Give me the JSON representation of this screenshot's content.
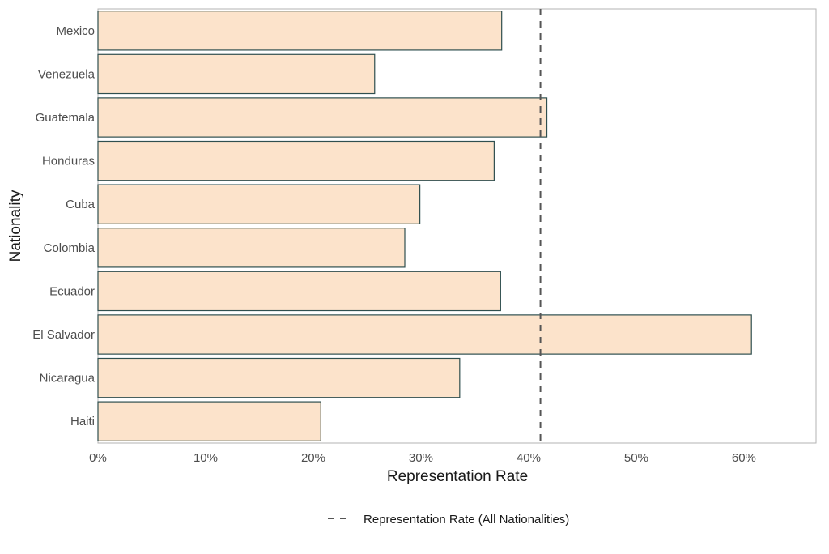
{
  "chart_data": {
    "type": "bar",
    "orientation": "horizontal",
    "categories": [
      "Mexico",
      "Venezuela",
      "Guatemala",
      "Honduras",
      "Cuba",
      "Colombia",
      "Ecuador",
      "El Salvador",
      "Nicaragua",
      "Haiti"
    ],
    "values": [
      0.375,
      0.257,
      0.417,
      0.368,
      0.299,
      0.285,
      0.374,
      0.607,
      0.336,
      0.207
    ],
    "xlabel": "Representation Rate",
    "ylabel": "Nationality",
    "xlim": [
      0,
      0.667
    ],
    "xticks": [
      0,
      0.1,
      0.2,
      0.3,
      0.4,
      0.5,
      0.6
    ],
    "xtick_labels": [
      "0%",
      "10%",
      "20%",
      "30%",
      "40%",
      "50%",
      "60%"
    ],
    "reference_line": {
      "value": 0.411,
      "style": "dashed",
      "label": "Representation Rate (All Nationalities)"
    },
    "legend_position": "bottom-center",
    "grid": false,
    "colors": {
      "bar_fill": "#fce3cb",
      "bar_stroke": "#2f4f4f",
      "reference_line": "#555555",
      "panel_border": "#b3b3b3"
    }
  }
}
